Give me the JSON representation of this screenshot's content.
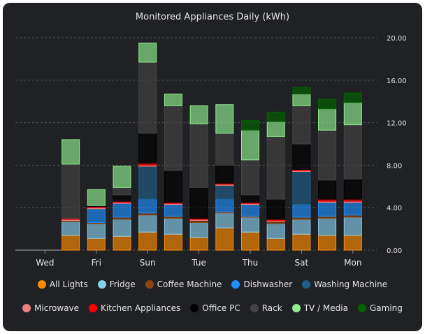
{
  "chart_data": {
    "type": "bar",
    "stacked": true,
    "title": "Monitored Appliances Daily (kWh)",
    "xlabel": "",
    "ylabel": "",
    "ylim": [
      0,
      20
    ],
    "yticks": [
      "0.00",
      "4.00",
      "8.00",
      "12.00",
      "16.00",
      "20.00"
    ],
    "y_axis_side": "right",
    "grid": "horizontal dashed",
    "legend_position": "bottom",
    "categories": [
      "Tue",
      "Wed",
      "Thu",
      "Fri",
      "Sat",
      "Sun",
      "Mon",
      "Tue",
      "Wed",
      "Thu",
      "Fri",
      "Sat",
      "Sun",
      "Mon"
    ],
    "xticks": [
      {
        "index": 1,
        "label": "Wed"
      },
      {
        "index": 3,
        "label": "Fri"
      },
      {
        "index": 5,
        "label": "Sun"
      },
      {
        "index": 7,
        "label": "Tue"
      },
      {
        "index": 9,
        "label": "Thu"
      },
      {
        "index": 11,
        "label": "Sat"
      },
      {
        "index": 13,
        "label": "Mon"
      }
    ],
    "series": [
      {
        "name": "All Lights",
        "color": "#ff8c00",
        "values": [
          0,
          0,
          1.4,
          1.1,
          1.3,
          1.7,
          1.5,
          1.2,
          2.1,
          1.7,
          1.1,
          1.5,
          1.4,
          1.4
        ]
      },
      {
        "name": "Fridge",
        "color": "#87ceeb",
        "values": [
          0,
          0,
          1.3,
          1.4,
          1.6,
          1.6,
          1.5,
          1.4,
          1.4,
          1.4,
          1.4,
          1.4,
          1.6,
          1.7
        ]
      },
      {
        "name": "Coffee Machine",
        "color": "#8b4513",
        "values": [
          0,
          0,
          0.1,
          0.1,
          0.2,
          0.2,
          0.2,
          0.2,
          0.1,
          0.1,
          0.2,
          0.2,
          0.2,
          0.2
        ]
      },
      {
        "name": "Dishwasher",
        "color": "#1e90ff",
        "values": [
          0,
          0,
          0,
          1.3,
          1.3,
          1.3,
          1.1,
          0,
          1.2,
          1.1,
          0,
          1.2,
          1.3,
          1.2
        ]
      },
      {
        "name": "Washing Machine",
        "color": "#1f5f87",
        "values": [
          0,
          0,
          0,
          0,
          0,
          3.1,
          0,
          0,
          1.3,
          0,
          0,
          3.1,
          0,
          0
        ]
      },
      {
        "name": "Microwave",
        "color": "#f08080",
        "values": [
          0,
          0,
          0.1,
          0.1,
          0.1,
          0.1,
          0.1,
          0.1,
          0.1,
          0.1,
          0.1,
          0.1,
          0.1,
          0.1
        ]
      },
      {
        "name": "Kitchen Appliances",
        "color": "#ff0000",
        "values": [
          0,
          0,
          0.1,
          0.1,
          0.1,
          0.2,
          0.1,
          0.1,
          0.1,
          0.1,
          0.1,
          0.1,
          0.2,
          0.2
        ]
      },
      {
        "name": "Office PC",
        "color": "#000000",
        "values": [
          0,
          0,
          0,
          0.1,
          0.6,
          2.8,
          3.0,
          2.9,
          1.7,
          0.7,
          1.9,
          2.4,
          1.8,
          1.9
        ]
      },
      {
        "name": "Rack",
        "color": "#444444",
        "values": [
          0,
          0,
          5.1,
          0,
          0.7,
          6.7,
          6.1,
          6.0,
          3.0,
          3.3,
          5.9,
          3.6,
          4.7,
          5.1
        ]
      },
      {
        "name": "TV / Media",
        "color": "#90ee90",
        "values": [
          0,
          0,
          2.3,
          1.5,
          2.0,
          1.8,
          1.1,
          1.7,
          2.7,
          2.8,
          1.4,
          1.1,
          2.0,
          2.1
        ]
      },
      {
        "name": "Gaming",
        "color": "#006400",
        "values": [
          0,
          0,
          0,
          0,
          0,
          0,
          0,
          0,
          0,
          0.9,
          0.9,
          0.6,
          0.9,
          0.9
        ]
      }
    ]
  }
}
